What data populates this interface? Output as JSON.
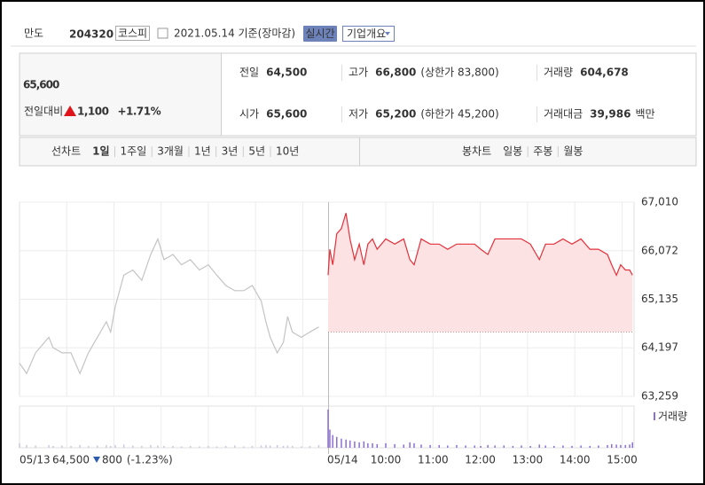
{
  "header": {
    "name": "만도",
    "code": "204320",
    "market": "코스피",
    "date": "2021.05.14 기준(장마감)",
    "realtime": "실시간",
    "overview": "기업개요"
  },
  "summary": {
    "price": "65,600",
    "change_label": "전일대비",
    "change": "1,100",
    "change_rate": "+1.71%",
    "color": "#e0151b",
    "rows": [
      [
        {
          "label": "전일",
          "value": "64,500",
          "color": "#222"
        },
        {
          "label": "고가",
          "value": "66,800",
          "note": "(상한가 83,800)",
          "color": "#e0151b"
        },
        {
          "label": "거래량",
          "value": "604,678",
          "color": "#222"
        }
      ],
      [
        {
          "label": "시가",
          "value": "65,600",
          "color": "#e0151b"
        },
        {
          "label": "저가",
          "value": "65,200",
          "note": "(하한가 45,200)",
          "color": "#e0151b"
        },
        {
          "label": "거래대금",
          "value": "39,986",
          "unit": "백만",
          "color": "#222"
        }
      ]
    ]
  },
  "tabs": {
    "line_label": "선차트",
    "line_items": [
      "1일",
      "1주일",
      "3개월",
      "1년",
      "3년",
      "5년",
      "10년"
    ],
    "candle_label": "봉차트",
    "candle_items": [
      "일봉",
      "주봉",
      "월봉"
    ]
  },
  "chart_data": {
    "type": "line",
    "ylim": [
      63259,
      67010
    ],
    "yticks": [
      {
        "value": 67010,
        "label": "67,010"
      },
      {
        "value": 66072,
        "label": "66,072"
      },
      {
        "value": 65135,
        "label": "65,135"
      },
      {
        "value": 64197,
        "label": "64,197"
      },
      {
        "value": 63259,
        "label": "63,259"
      }
    ],
    "xlim": [
      9,
      15.5
    ],
    "xticks": [
      {
        "value": 10,
        "label": "10:00"
      },
      {
        "value": 11,
        "label": "11:00"
      },
      {
        "value": 12,
        "label": "12:00"
      },
      {
        "value": 13,
        "label": "13:00"
      },
      {
        "value": 14,
        "label": "14:00"
      },
      {
        "value": 15,
        "label": "15:00"
      }
    ],
    "baseline": 64500,
    "volume_label": "거래량",
    "footer": {
      "close": "64,500",
      "change": "800",
      "change_rate": "(-1.23%)",
      "color": "#2a5caa"
    },
    "series": [
      {
        "date": "05/13",
        "color": "#c4c4c4",
        "volume_color": "#c9c9df",
        "x": [
          9.0,
          9.15,
          9.34,
          9.62,
          9.71,
          9.9,
          10.09,
          10.28,
          10.46,
          10.65,
          10.84,
          10.93,
          11.03,
          11.21,
          11.4,
          11.59,
          11.78,
          11.93,
          12.06,
          12.25,
          12.43,
          12.62,
          12.81,
          13.0,
          13.18,
          13.37,
          13.56,
          13.75,
          13.93,
          14.12,
          14.22,
          14.31,
          14.46,
          14.59,
          14.68,
          14.78,
          14.97,
          15.15,
          15.34
        ],
        "values": [
          63900,
          63700,
          64100,
          64400,
          64200,
          64100,
          64100,
          63700,
          64100,
          64400,
          64700,
          64500,
          65000,
          65600,
          65700,
          65500,
          66000,
          66300,
          65900,
          66000,
          65800,
          65900,
          65700,
          65800,
          65600,
          65400,
          65300,
          65300,
          65400,
          65100,
          64700,
          64400,
          64100,
          64300,
          64800,
          64500,
          64400,
          64500,
          64600
        ],
        "volumes": [
          5000,
          3000,
          2500,
          3000,
          2000,
          2500,
          2000,
          3000,
          2000,
          2500,
          3000,
          2000,
          3000,
          3500,
          2500,
          2000,
          3000,
          2500,
          2000,
          2000,
          1500,
          2000,
          1500,
          2000,
          1500,
          2000,
          2500,
          1500,
          2000,
          2500,
          3000,
          2500,
          3000,
          2000,
          2500,
          2000,
          1500,
          2000,
          3000
        ]
      },
      {
        "date": "05/14",
        "color": "#e3303a",
        "fill": "#fde2e3",
        "volume_color": "#8c6fd6",
        "x": [
          9.0,
          9.03,
          9.08,
          9.15,
          9.23,
          9.31,
          9.38,
          9.46,
          9.54,
          9.62,
          9.69,
          9.77,
          9.85,
          10.0,
          10.19,
          10.38,
          10.51,
          10.6,
          10.75,
          10.94,
          11.13,
          11.31,
          11.5,
          11.69,
          11.88,
          12.01,
          12.16,
          12.31,
          12.5,
          12.69,
          12.87,
          13.06,
          13.25,
          13.38,
          13.56,
          13.75,
          13.94,
          14.13,
          14.32,
          14.5,
          14.69,
          14.78,
          14.88,
          14.97,
          15.07,
          15.16,
          15.22
        ],
        "values": [
          65600,
          66100,
          65800,
          66400,
          66500,
          66800,
          66300,
          65900,
          66200,
          65800,
          66200,
          66300,
          66100,
          66300,
          66200,
          66300,
          65900,
          65800,
          66300,
          66200,
          66200,
          66100,
          66200,
          66200,
          66200,
          66100,
          66000,
          66300,
          66300,
          66300,
          66300,
          66200,
          65900,
          66200,
          66200,
          66300,
          66200,
          66300,
          66100,
          66100,
          66000,
          65800,
          65600,
          65800,
          65700,
          65700,
          65600
        ],
        "volumes": [
          42000,
          20000,
          14000,
          12000,
          10000,
          9000,
          8000,
          7000,
          6000,
          7000,
          5000,
          5000,
          4000,
          5000,
          4000,
          3500,
          6000,
          5000,
          3500,
          3000,
          3000,
          2500,
          3000,
          2500,
          2500,
          2000,
          3000,
          2500,
          2500,
          2000,
          2500,
          2000,
          3500,
          2500,
          2000,
          2500,
          2000,
          2500,
          2000,
          2500,
          3000,
          4000,
          3500,
          3000,
          3000,
          3500,
          6000
        ]
      }
    ]
  }
}
